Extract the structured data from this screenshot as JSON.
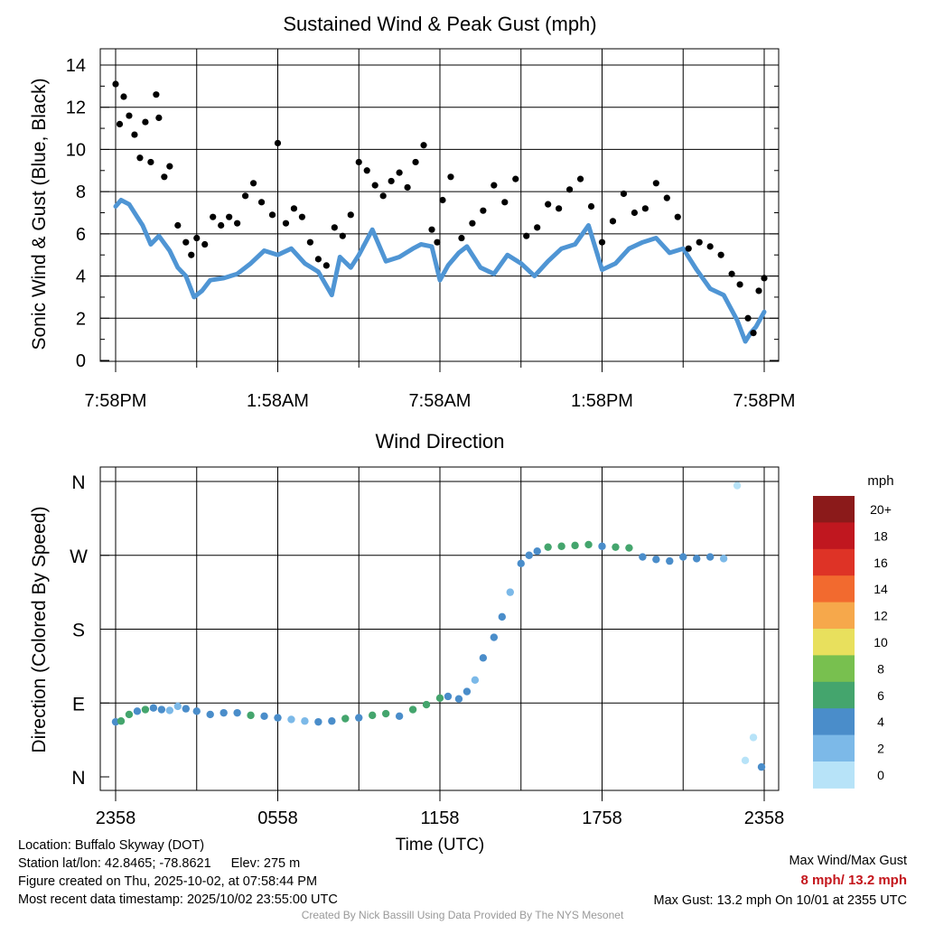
{
  "chart_data": [
    {
      "type": "scatter",
      "title": "Sustained Wind & Peak Gust (mph)",
      "ylabel": "Sonic Wind & Gust (Blue, Black)",
      "xlabel": "",
      "ylim": [
        0,
        14
      ],
      "y_ticks": [
        "0",
        "2",
        "4",
        "6",
        "8",
        "10",
        "12",
        "14"
      ],
      "x_ticks": [
        "7:58PM",
        "1:58AM",
        "7:58AM",
        "1:58PM",
        "7:58PM"
      ],
      "x_unit": "hours since 7:58PM",
      "xlim": [
        0,
        24
      ],
      "grid": true,
      "series": [
        {
          "name": "Sustained Wind",
          "color": "#4f95d4",
          "x": [
            0,
            0.2,
            0.5,
            0.8,
            1,
            1.3,
            1.6,
            2,
            2.3,
            2.6,
            2.9,
            3.2,
            3.5,
            4,
            4.5,
            5,
            5.5,
            6,
            6.5,
            7,
            7.5,
            8,
            8.3,
            8.7,
            9,
            9.5,
            10,
            10.5,
            11,
            11.3,
            11.7,
            12,
            12.3,
            12.7,
            13,
            13.5,
            14,
            14.5,
            15,
            15.5,
            16,
            16.5,
            17,
            17.5,
            18,
            18.5,
            19,
            19.5,
            20,
            20.5,
            21,
            21.5,
            22,
            22.5,
            23,
            23.3,
            23.5,
            23.7,
            24
          ],
          "values": [
            7.3,
            7.6,
            7.4,
            6.8,
            6.4,
            5.5,
            5.9,
            5.2,
            4.4,
            4.0,
            3.0,
            3.3,
            3.8,
            3.9,
            4.1,
            4.6,
            5.2,
            5.0,
            5.3,
            4.6,
            4.2,
            3.1,
            4.9,
            4.4,
            5.0,
            6.2,
            4.7,
            4.9,
            5.3,
            5.5,
            5.4,
            3.8,
            4.5,
            5.1,
            5.4,
            4.4,
            4.1,
            5.0,
            4.6,
            4.0,
            4.7,
            5.3,
            5.5,
            6.4,
            4.3,
            4.6,
            5.3,
            5.6,
            5.8,
            5.1,
            5.3,
            4.3,
            3.4,
            3.1,
            1.9,
            0.9,
            1.3,
            1.6,
            2.3
          ]
        },
        {
          "name": "Peak Gust",
          "color": "#000000",
          "x": [
            0,
            0.15,
            0.3,
            0.5,
            0.7,
            0.9,
            1.1,
            1.3,
            1.5,
            1.6,
            1.8,
            2.0,
            2.3,
            2.6,
            2.8,
            3.0,
            3.3,
            3.6,
            3.9,
            4.2,
            4.5,
            4.8,
            5.1,
            5.4,
            5.8,
            6.0,
            6.3,
            6.6,
            6.9,
            7.2,
            7.5,
            7.8,
            8.1,
            8.4,
            8.7,
            9.0,
            9.3,
            9.6,
            9.9,
            10.2,
            10.5,
            10.8,
            11.1,
            11.4,
            11.7,
            11.9,
            12.1,
            12.4,
            12.8,
            13.2,
            13.6,
            14.0,
            14.4,
            14.8,
            15.2,
            15.6,
            16.0,
            16.4,
            16.8,
            17.2,
            17.6,
            18.0,
            18.4,
            18.8,
            19.2,
            19.6,
            20.0,
            20.4,
            20.8,
            21.2,
            21.6,
            22.0,
            22.4,
            22.8,
            23.1,
            23.4,
            23.6,
            23.8,
            24
          ],
          "values": [
            13.1,
            11.2,
            12.5,
            11.6,
            10.7,
            9.6,
            11.3,
            9.4,
            12.6,
            11.5,
            8.7,
            9.2,
            6.4,
            5.6,
            5.0,
            5.8,
            5.5,
            6.8,
            6.4,
            6.8,
            6.5,
            7.8,
            8.4,
            7.5,
            6.9,
            10.3,
            6.5,
            7.2,
            6.8,
            5.6,
            4.8,
            4.5,
            6.3,
            5.9,
            6.9,
            9.4,
            9.0,
            8.3,
            7.8,
            8.5,
            8.9,
            8.2,
            9.4,
            10.2,
            6.2,
            5.6,
            7.6,
            8.7,
            5.8,
            6.5,
            7.1,
            8.3,
            7.5,
            8.6,
            5.9,
            6.3,
            7.4,
            7.2,
            8.1,
            8.6,
            7.3,
            5.6,
            6.6,
            7.9,
            7.0,
            7.2,
            8.4,
            7.7,
            6.8,
            5.3,
            5.6,
            5.4,
            5.0,
            4.1,
            3.6,
            2.0,
            1.3,
            3.3,
            3.9
          ]
        }
      ]
    },
    {
      "type": "scatter",
      "title": "Wind Direction",
      "ylabel": "Direction (Colored By Speed)",
      "xlabel": "Time (UTC)",
      "y_ticks": [
        "N",
        "E",
        "S",
        "W",
        "N"
      ],
      "ylim": [
        0,
        360
      ],
      "x_ticks": [
        "2358",
        "0558",
        "1158",
        "1758",
        "2358"
      ],
      "x_unit": "hours since 2358 UTC",
      "xlim": [
        0,
        24
      ],
      "grid": true,
      "series": [
        {
          "name": "Wind Direction (degrees)",
          "x": [
            0,
            0.2,
            0.5,
            0.8,
            1.1,
            1.4,
            1.7,
            2.0,
            2.3,
            2.6,
            3.0,
            3.5,
            4.0,
            4.5,
            5.0,
            5.5,
            6.0,
            6.5,
            7.0,
            7.5,
            8.0,
            8.5,
            9.0,
            9.5,
            10.0,
            10.5,
            11.0,
            11.5,
            12.0,
            12.3,
            12.7,
            13.0,
            13.3,
            13.6,
            14.0,
            14.3,
            14.6,
            15.0,
            15.3,
            15.6,
            16.0,
            16.5,
            17.0,
            17.5,
            18.0,
            18.5,
            19.0,
            19.5,
            20.0,
            20.5,
            21.0,
            21.5,
            22.0,
            22.5,
            23.0,
            23.3,
            23.6,
            23.9
          ],
          "values": [
            67,
            68,
            76,
            80,
            82,
            84,
            82,
            81,
            86,
            83,
            80,
            76,
            78,
            78,
            75,
            74,
            72,
            70,
            68,
            67,
            68,
            71,
            72,
            75,
            77,
            74,
            82,
            88,
            96,
            98,
            95,
            104,
            118,
            145,
            170,
            195,
            225,
            260,
            270,
            275,
            280,
            281,
            282,
            283,
            281,
            280,
            279,
            268,
            265,
            263,
            268,
            266,
            268,
            266,
            355,
            20,
            48,
            12
          ],
          "speed": [
            5,
            6,
            6,
            5,
            6,
            4,
            5,
            3,
            2,
            4,
            4,
            4,
            4,
            5,
            6,
            4,
            4,
            3,
            3,
            4,
            4,
            6,
            5,
            6,
            6,
            5,
            6,
            6,
            6,
            5,
            4,
            4,
            3,
            4,
            4,
            4,
            3,
            4,
            4,
            5,
            6,
            7,
            6,
            7,
            5,
            6,
            6,
            5,
            4,
            4,
            4,
            4,
            4,
            3,
            1,
            1,
            1,
            4
          ]
        }
      ],
      "colorbar": {
        "unit": "mph",
        "levels": [
          "20+",
          "18",
          "16",
          "14",
          "12",
          "10",
          "8",
          "6",
          "4",
          "2",
          "0"
        ],
        "colors": [
          "#8b1a1a",
          "#c0171f",
          "#de3326",
          "#f26a2f",
          "#f6a84b",
          "#e8e05d",
          "#78c04f",
          "#44a56d",
          "#4a8dca",
          "#7cb9e8",
          "#b7e3f8"
        ]
      }
    }
  ],
  "footer": {
    "location": "Location: Buffalo Skyway (DOT)",
    "latlon": "Station lat/lon: 42.8465; -78.8621",
    "elev": "Elev: 275 m",
    "created": "Figure created on Thu, 2025-10-02, at 07:58:44 PM",
    "recent": "Most recent data timestamp: 2025/10/02 23:55:00 UTC",
    "max_label": "Max Wind/Max Gust",
    "max_values": "8 mph/ 13.2 mph",
    "max_gust": "Max Gust: 13.2 mph On 10/01 at 2355 UTC",
    "credit": "Created By Nick Bassill Using Data Provided By The NYS Mesonet"
  }
}
